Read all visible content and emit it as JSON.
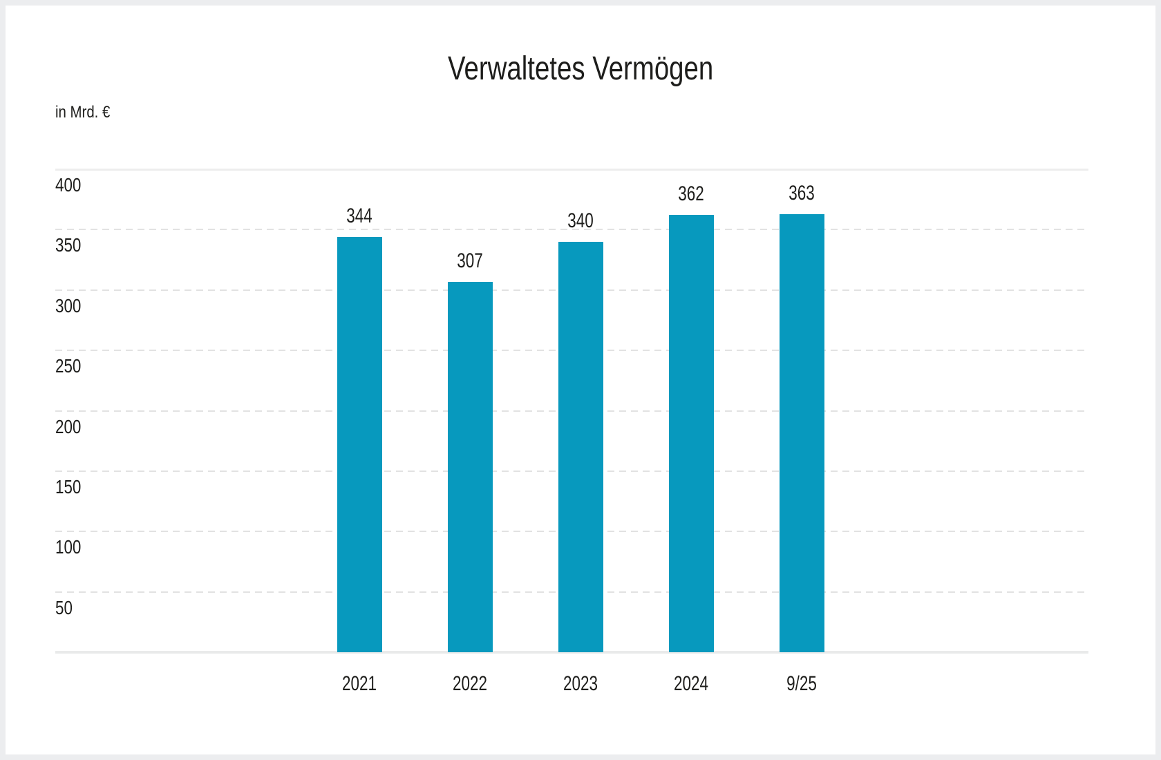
{
  "page": {
    "background_color": "#ecedef",
    "card_color": "#ffffff",
    "text_color": "#1d1d1b"
  },
  "chart_data": {
    "type": "bar",
    "title": "Verwaltetes Vermögen",
    "unit_label": "in Mrd. €",
    "categories": [
      "2021",
      "2022",
      "2023",
      "2024",
      "9/25"
    ],
    "values": [
      344,
      307,
      340,
      362,
      363
    ],
    "bar_color": "#0799be",
    "y_ticks": [
      50,
      100,
      150,
      200,
      250,
      300,
      350,
      400
    ],
    "ylim": [
      0,
      400
    ],
    "xlabel": "",
    "ylabel": "in Mrd. €",
    "grid": "horizontal-dashed",
    "grid_color": "#e2e2e2",
    "axis_line_color": "#e9eaea",
    "value_labels_shown": true,
    "legend": false
  }
}
